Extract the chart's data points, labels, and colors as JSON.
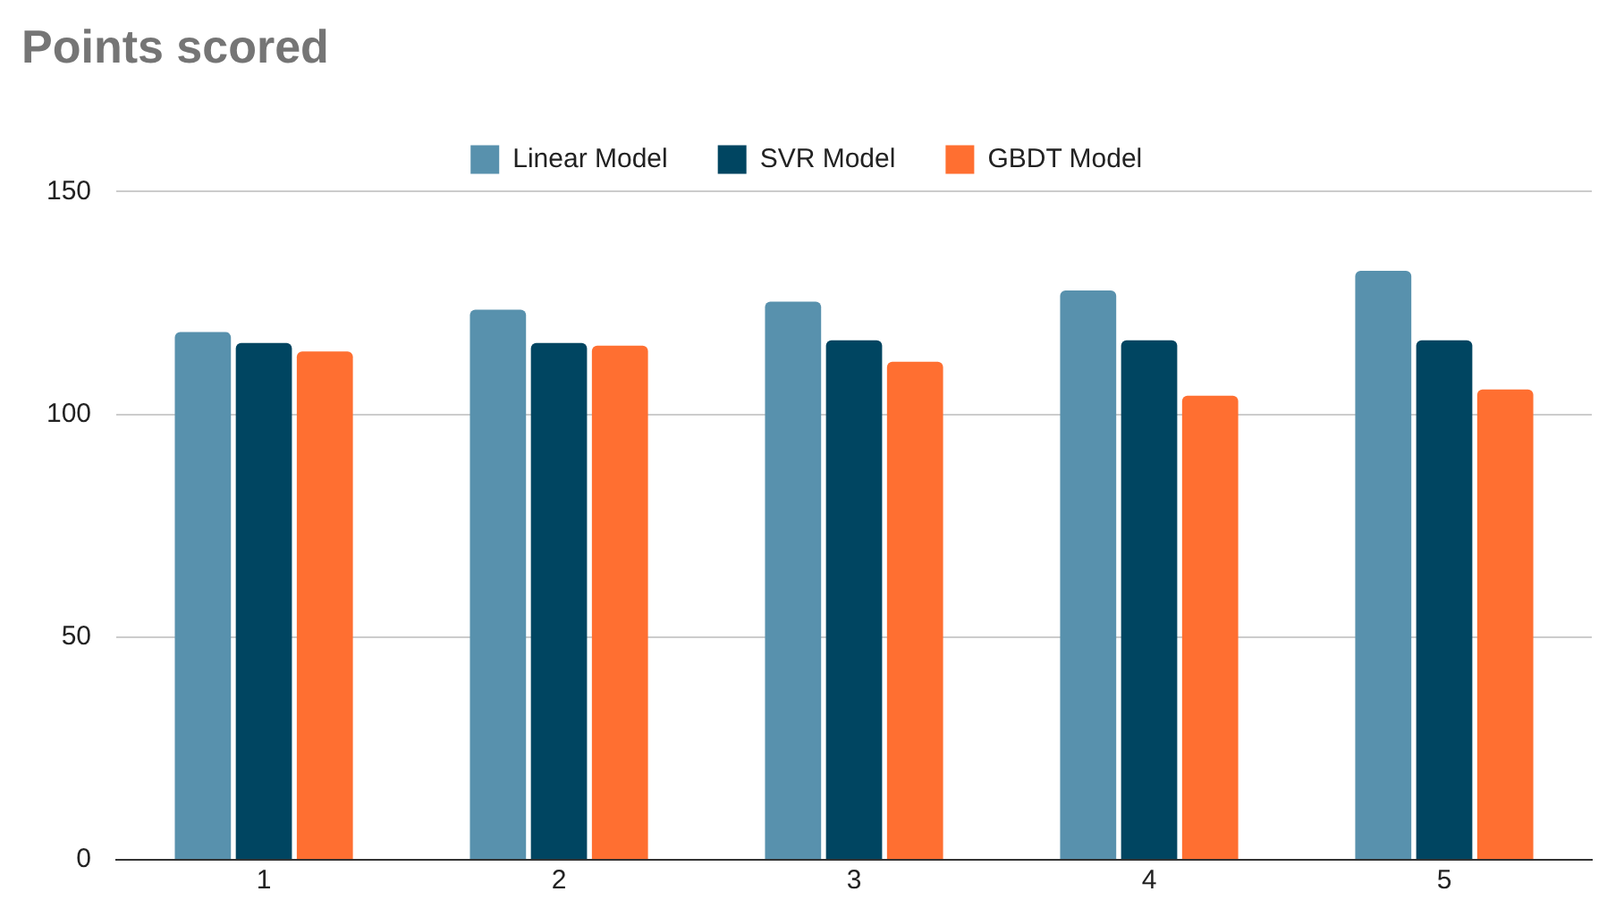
{
  "chart_data": {
    "type": "bar",
    "title": "Points scored",
    "categories": [
      "1",
      "2",
      "3",
      "4",
      "5"
    ],
    "series": [
      {
        "name": "Linear Model",
        "color": "#5891ad",
        "values": [
          118.5,
          123.5,
          125.3,
          127.8,
          132.2
        ]
      },
      {
        "name": "SVR Model",
        "color": "#004561",
        "values": [
          116,
          116,
          116.6,
          116.6,
          116.6
        ]
      },
      {
        "name": "GBDT Model",
        "color": "#ff6f31",
        "values": [
          114.1,
          115.4,
          111.8,
          104.2,
          105.6
        ]
      }
    ],
    "ylim": [
      0,
      150
    ],
    "yticks": [
      0,
      50,
      100,
      150
    ],
    "grid": "y",
    "legend": "top"
  }
}
